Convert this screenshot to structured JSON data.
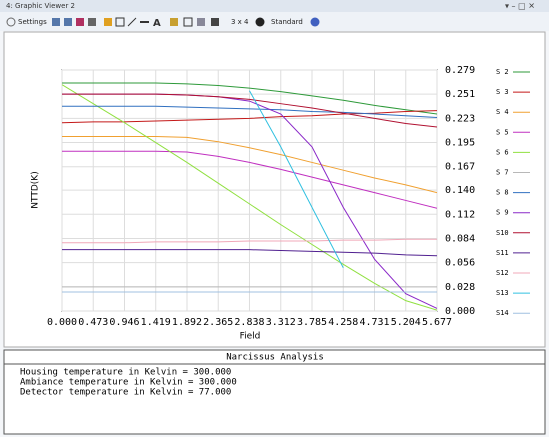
{
  "window": {
    "title": "4: Graphic Viewer 2"
  },
  "toolbar": {
    "settings": "Settings",
    "layout": "3 x 4",
    "style": "Standard"
  },
  "chart_data": {
    "type": "line",
    "y_label": "NTTD(K)",
    "x_label": "Field",
    "grid": true,
    "y_axis_side": "right",
    "legend": "right",
    "x": [
      0,
      0.473,
      0.946,
      1.419,
      1.892,
      2.365,
      2.838,
      3.312,
      3.785,
      4.258,
      4.731,
      5.204,
      5.677
    ],
    "xlim": [
      0,
      5.677
    ],
    "xticks": [
      {
        "value": 0,
        "label": "0.000"
      },
      0.473,
      0.946,
      1.419,
      1.892,
      2.365,
      2.838,
      3.312,
      3.785,
      4.258,
      4.731,
      5.204,
      5.677
    ],
    "ylim": [
      0,
      0.279
    ],
    "yticks": [
      {
        "value": 0,
        "label": "0.000"
      },
      0.028,
      0.056,
      0.084,
      0.112,
      {
        "value": 0.14,
        "label": "0.140"
      },
      0.167,
      0.195,
      0.223,
      0.251,
      0.279
    ],
    "series": [
      {
        "name": "S 2",
        "color": "#2e9a3a",
        "values": [
          0.264,
          0.264,
          0.264,
          0.264,
          0.263,
          0.261,
          0.258,
          0.254,
          0.249,
          0.244,
          0.238,
          0.233,
          0.228
        ]
      },
      {
        "name": "S 3",
        "color": "#c41818",
        "values": [
          0.218,
          0.219,
          0.219,
          0.22,
          0.221,
          0.222,
          0.223,
          0.225,
          0.226,
          0.228,
          0.229,
          0.231,
          0.232
        ]
      },
      {
        "name": "S 4",
        "color": "#f0a030",
        "values": [
          0.202,
          0.202,
          0.202,
          0.202,
          0.201,
          0.196,
          0.189,
          0.181,
          0.172,
          0.163,
          0.154,
          0.146,
          0.137
        ]
      },
      {
        "name": "S 5",
        "color": "#c030c0",
        "values": [
          0.185,
          0.185,
          0.185,
          0.185,
          0.184,
          0.179,
          0.172,
          0.164,
          0.155,
          0.146,
          0.137,
          0.128,
          0.119
        ]
      },
      {
        "name": "S 6",
        "color": "#90e040",
        "values": [
          0.262,
          0.24,
          0.218,
          0.195,
          0.172,
          0.148,
          0.124,
          0.1,
          0.077,
          0.054,
          0.032,
          0.012,
          0.001
        ]
      },
      {
        "name": "S 7",
        "color": "#b8b8b8",
        "values": [
          0.028,
          0.028,
          0.028,
          0.028,
          0.028,
          0.028,
          0.028,
          0.028,
          0.028,
          0.028,
          0.028,
          0.028,
          0.028
        ]
      },
      {
        "name": "S 8",
        "color": "#3070c0",
        "values": [
          0.237,
          0.237,
          0.237,
          0.237,
          0.236,
          0.235,
          0.234,
          0.233,
          0.231,
          0.23,
          0.228,
          0.226,
          0.224
        ]
      },
      {
        "name": "S 9",
        "color": "#8a28c8",
        "values": [
          0.251,
          0.251,
          0.251,
          0.251,
          0.25,
          0.248,
          0.243,
          0.228,
          0.19,
          0.12,
          0.06,
          0.02,
          0.003
        ]
      },
      {
        "name": "S10",
        "color": "#b01030",
        "values": [
          0.251,
          0.251,
          0.251,
          0.251,
          0.25,
          0.248,
          0.245,
          0.24,
          0.235,
          0.229,
          0.223,
          0.217,
          0.213
        ]
      },
      {
        "name": "S11",
        "color": "#502090",
        "values": [
          0.071,
          0.071,
          0.071,
          0.071,
          0.071,
          0.071,
          0.071,
          0.07,
          0.069,
          0.068,
          0.067,
          0.065,
          0.064
        ]
      },
      {
        "name": "S12",
        "color": "#f0a8b8",
        "values": [
          0.079,
          0.079,
          0.079,
          0.08,
          0.08,
          0.08,
          0.081,
          0.081,
          0.081,
          0.082,
          0.082,
          0.083,
          0.083
        ]
      },
      {
        "name": "S13",
        "color": "#30c0e0",
        "values": [
          null,
          null,
          null,
          null,
          null,
          null,
          0.255,
          0.19,
          0.12,
          0.05,
          null,
          null,
          null
        ]
      },
      {
        "name": "S14",
        "color": "#a0c0e0",
        "values": [
          0.022,
          0.022,
          0.022,
          0.022,
          0.022,
          0.022,
          0.022,
          0.022,
          0.022,
          0.022,
          0.022,
          0.022,
          0.022
        ]
      }
    ]
  },
  "text_panel": {
    "title": "Narcissus Analysis",
    "lines": [
      "Housing temperature in Kelvin = 300.000",
      "Ambiance temperature in Kelvin = 300.000",
      "Detector temperature in Kelvin = 77.000"
    ]
  }
}
